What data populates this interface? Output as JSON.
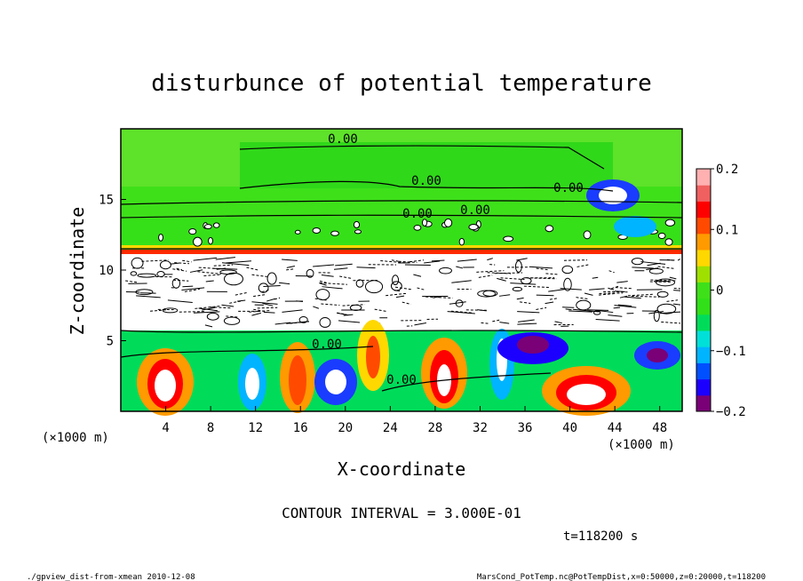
{
  "chart_data": {
    "type": "heatmap",
    "title": "disturbunce of potential temperature",
    "xlabel": "X-coordinate",
    "ylabel": "Z-coordinate",
    "x_unit_left": "(×1000 m)",
    "x_unit_right": "(×1000 m)",
    "xlim": [
      0,
      50
    ],
    "ylim": [
      0,
      20
    ],
    "x_ticks": [
      "4",
      "8",
      "12",
      "16",
      "20",
      "24",
      "28",
      "32",
      "36",
      "40",
      "44",
      "48"
    ],
    "y_ticks": [
      "5",
      "10",
      "15"
    ],
    "colorbar": {
      "range": [
        -0.2,
        0.2
      ],
      "tick_labels": [
        "0.2",
        "0.1",
        "0",
        "−0.1",
        "−0.2"
      ],
      "colors": [
        "#7a0077",
        "#1c00ff",
        "#0050ff",
        "#00b4ff",
        "#00e0d8",
        "#00dc5a",
        "#31e018",
        "#3ee01a",
        "#a0e000",
        "#ffd800",
        "#ff9a00",
        "#ff4a00",
        "#ff0000",
        "#f06060",
        "#ffb0b0"
      ]
    },
    "contour_labels": [
      "0.00",
      "0.00",
      "0.00",
      "0.00",
      "0.00",
      "0.00",
      "0.00"
    ],
    "contour_interval_text": "CONTOUR INTERVAL = 3.000E-01",
    "time_text": "t=118200 s"
  },
  "footer": {
    "left": "./gpview_dist-from-xmean  2010-12-08",
    "right": "MarsCond_PotTemp.nc@PotTempDist,x=0:50000,z=0:20000,t=118200"
  },
  "colors": {
    "background_green": "#3ee01a",
    "upper_green": "#7ee43a",
    "band_red": "#ff2a00",
    "warm_red": "#ff2020",
    "cool_blue": "#1a3cff",
    "purple": "#7a0077"
  }
}
